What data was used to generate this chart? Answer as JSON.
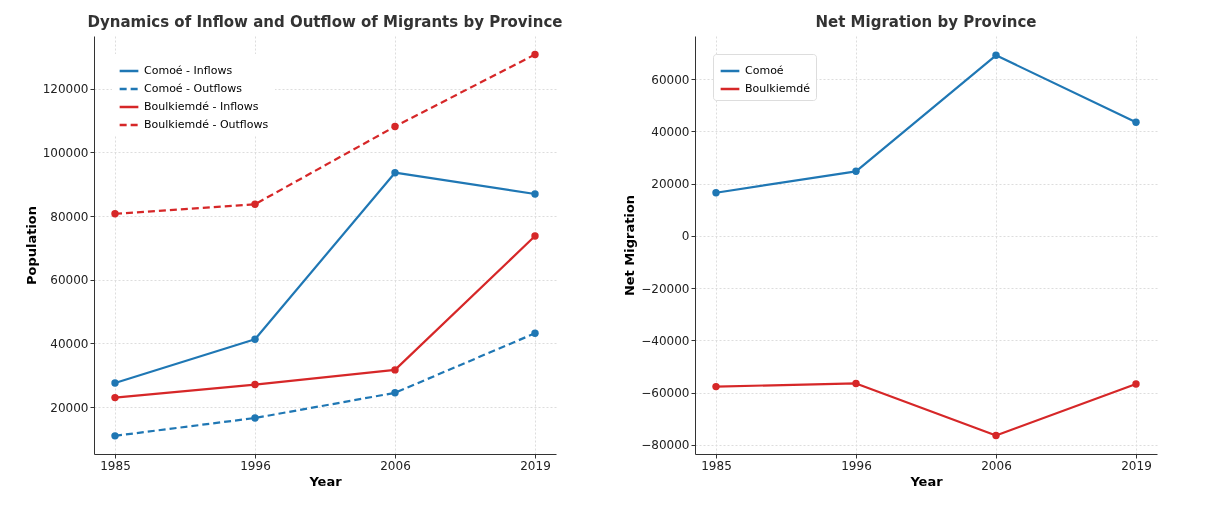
{
  "chart_data": [
    {
      "type": "line",
      "title": "Dynamics of Inflow and Outflow of Migrants by Province",
      "xlabel": "Year",
      "ylabel": "Population",
      "categories": [
        "1985",
        "1996",
        "2006",
        "2019"
      ],
      "ylim": [
        5300,
        136500
      ],
      "yticks": [
        20000,
        40000,
        60000,
        80000,
        100000,
        120000
      ],
      "grid": true,
      "legend": "top left",
      "marker": "circle",
      "series": [
        {
          "name": "Comoé - Inflows",
          "color": "#1f77b4",
          "line_style": "solid",
          "values": [
            27600,
            41300,
            93600,
            86900
          ]
        },
        {
          "name": "Comoé - Outflows",
          "color": "#1f77b4",
          "line_style": "dashed",
          "values": [
            11000,
            16600,
            24500,
            43200
          ]
        },
        {
          "name": "Boulkiemdé - Inflows",
          "color": "#d62728",
          "line_style": "solid",
          "values": [
            23000,
            27100,
            31700,
            73700
          ]
        },
        {
          "name": "Boulkiemdé - Outflows",
          "color": "#d62728",
          "line_style": "dashed",
          "values": [
            80700,
            83700,
            108100,
            130700
          ]
        }
      ]
    },
    {
      "type": "line",
      "title": "Net Migration by Province",
      "xlabel": "Year",
      "ylabel": "Net Migration",
      "categories": [
        "1985",
        "1996",
        "2006",
        "2019"
      ],
      "ylim": [
        -83500,
        76500
      ],
      "yticks": [
        -80000,
        -60000,
        -40000,
        -20000,
        0,
        20000,
        40000,
        60000
      ],
      "grid": true,
      "legend": "top left",
      "marker": "circle",
      "series": [
        {
          "name": "Comoé",
          "color": "#1f77b4",
          "values": [
            16500,
            24700,
            69100,
            43500
          ]
        },
        {
          "name": "Boulkiemdé",
          "color": "#d62728",
          "values": [
            -57700,
            -56500,
            -76400,
            -56700
          ]
        }
      ]
    }
  ]
}
